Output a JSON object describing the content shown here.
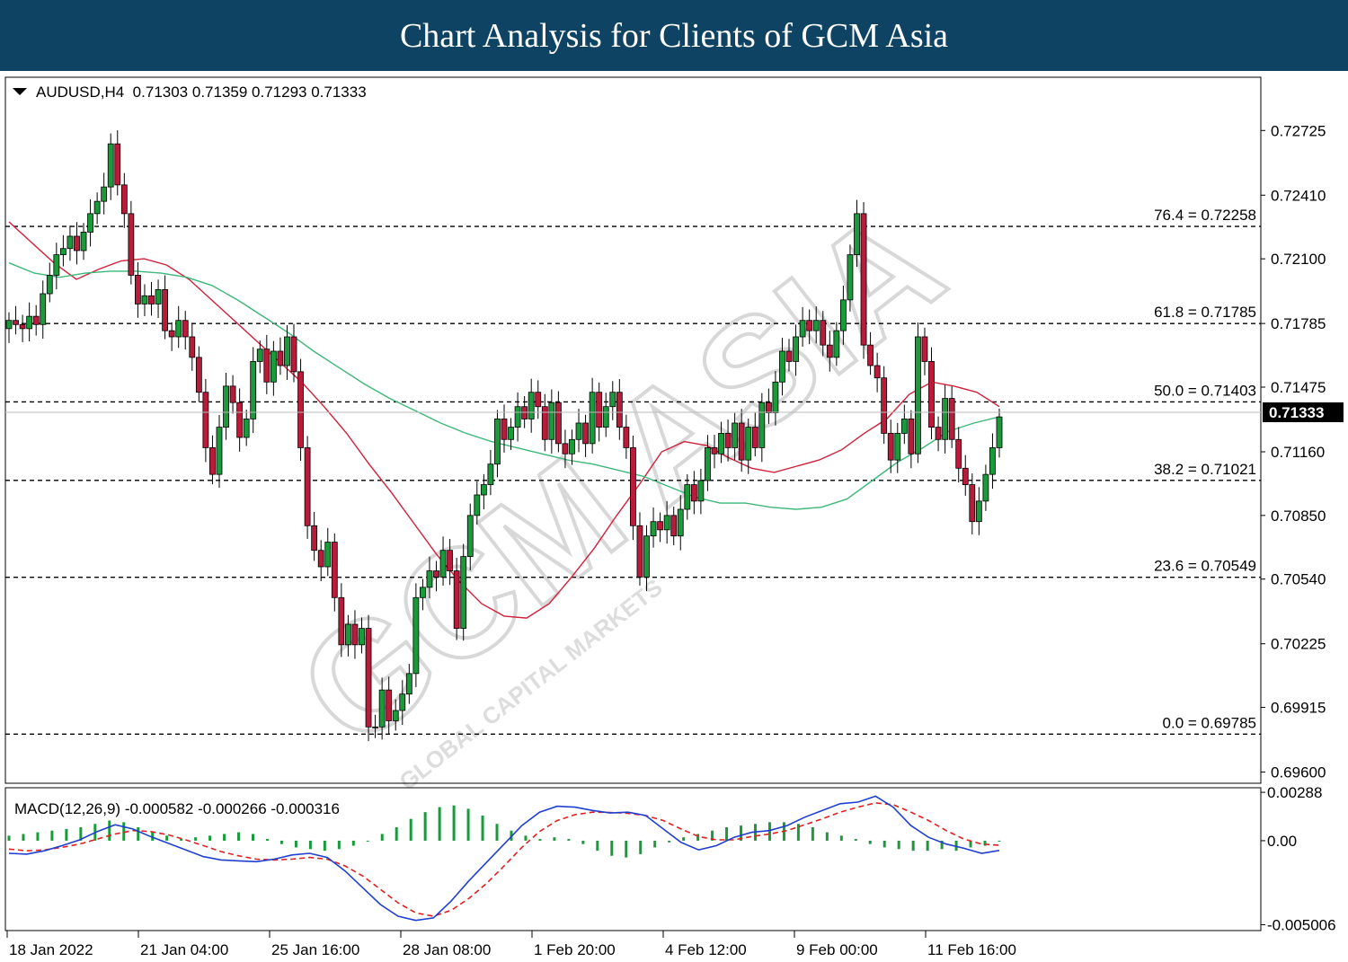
{
  "banner": {
    "title": "Chart Analysis for Clients of GCM Asia"
  },
  "watermark": {
    "brand": "GCM ASIA",
    "tagline": "GLOBAL CAPITAL MARKETS"
  },
  "colors": {
    "bull": "#1a9a3a",
    "bear": "#b81c3a",
    "ma_fast": "#d0203a",
    "ma_slow": "#3cb878",
    "macd_line": "#1f3fd0",
    "signal_line": "#e02020",
    "histogram": "#1a9a3a"
  },
  "chart_data": [
    {
      "type": "candlestick",
      "header": "AUDUSD,H4  0.71303 0.71359 0.71293 0.71333",
      "symbol": "AUDUSD",
      "timeframe": "H4",
      "ohlc": {
        "open": 0.71303,
        "high": 0.71359,
        "low": 0.71293,
        "close": 0.71333
      },
      "ylim": [
        0.6955,
        0.7298
      ],
      "y_ticks": [
        "0.72725",
        "0.72410",
        "0.72100",
        "0.71785",
        "0.71475",
        "0.71160",
        "0.70850",
        "0.70540",
        "0.70225",
        "0.69915",
        "0.69600"
      ],
      "current_price_label": "0.71333",
      "x_ticks": [
        "18 Jan 2022",
        "21 Jan 04:00",
        "25 Jan 16:00",
        "28 Jan 08:00",
        "1 Feb 20:00",
        "4 Feb 12:00",
        "9 Feb 00:00",
        "11 Feb 16:00"
      ],
      "fibonacci": [
        {
          "label": "76.4 = 0.72258",
          "value": 0.72258
        },
        {
          "label": "61.8 = 0.71785",
          "value": 0.71785
        },
        {
          "label": "50.0 = 0.71403",
          "value": 0.71403
        },
        {
          "label": "38.2 = 0.71021",
          "value": 0.71021
        },
        {
          "label": "23.6 = 0.70549",
          "value": 0.70549
        },
        {
          "label": "0.0 = 0.69785",
          "value": 0.69785
        }
      ],
      "closes": [
        0.718,
        0.7178,
        0.7176,
        0.7182,
        0.7178,
        0.7193,
        0.7202,
        0.7212,
        0.7215,
        0.7221,
        0.7214,
        0.7223,
        0.7232,
        0.7238,
        0.7245,
        0.7266,
        0.7246,
        0.7232,
        0.7202,
        0.7188,
        0.7192,
        0.7188,
        0.7195,
        0.7175,
        0.7172,
        0.718,
        0.7172,
        0.7162,
        0.7145,
        0.7118,
        0.7105,
        0.7128,
        0.7148,
        0.714,
        0.7123,
        0.7132,
        0.716,
        0.7166,
        0.715,
        0.7165,
        0.7158,
        0.7172,
        0.7155,
        0.7118,
        0.708,
        0.7068,
        0.706,
        0.7072,
        0.7045,
        0.7022,
        0.7032,
        0.7022,
        0.703,
        0.6982,
        0.6982,
        0.7,
        0.6985,
        0.699,
        0.6998,
        0.7008,
        0.7045,
        0.705,
        0.7058,
        0.7055,
        0.7068,
        0.7058,
        0.703,
        0.7065,
        0.7085,
        0.7095,
        0.71,
        0.711,
        0.7132,
        0.7122,
        0.7128,
        0.7138,
        0.7132,
        0.7145,
        0.7138,
        0.7122,
        0.714,
        0.712,
        0.7115,
        0.7122,
        0.713,
        0.712,
        0.7145,
        0.7128,
        0.7138,
        0.7145,
        0.7128,
        0.7118,
        0.708,
        0.7055,
        0.7075,
        0.7082,
        0.7078,
        0.7085,
        0.7075,
        0.7088,
        0.71,
        0.7092,
        0.7102,
        0.7118,
        0.7115,
        0.7125,
        0.7118,
        0.713,
        0.7112,
        0.7128,
        0.7118,
        0.714,
        0.7135,
        0.715,
        0.7165,
        0.716,
        0.7172,
        0.718,
        0.7175,
        0.718,
        0.7168,
        0.7162,
        0.7175,
        0.719,
        0.7212,
        0.7232,
        0.7168,
        0.7158,
        0.7152,
        0.7125,
        0.7112,
        0.7125,
        0.7132,
        0.7115,
        0.7172,
        0.716,
        0.7128,
        0.7122,
        0.7142,
        0.7122,
        0.7108,
        0.71,
        0.7082,
        0.7092,
        0.7105,
        0.7118,
        0.7133
      ],
      "moving_averages": [
        {
          "name": "MA fast",
          "values": [
            0.7228,
            0.7218,
            0.7208,
            0.72,
            0.7205,
            0.7209,
            0.721,
            0.7207,
            0.72,
            0.719,
            0.718,
            0.717,
            0.716,
            0.715,
            0.7138,
            0.7125,
            0.711,
            0.7096,
            0.7081,
            0.7066,
            0.7053,
            0.7042,
            0.7036,
            0.7035,
            0.7042,
            0.7055,
            0.7069,
            0.7085,
            0.71,
            0.7116,
            0.7121,
            0.7119,
            0.7113,
            0.7108,
            0.7106,
            0.7109,
            0.7112,
            0.7117,
            0.7125,
            0.7132,
            0.7144,
            0.715,
            0.7148,
            0.7145,
            0.7138
          ]
        },
        {
          "name": "MA slow",
          "values": [
            0.7208,
            0.7203,
            0.7201,
            0.7203,
            0.7204,
            0.7204,
            0.7203,
            0.7201,
            0.7197,
            0.719,
            0.7182,
            0.7174,
            0.7165,
            0.7157,
            0.7149,
            0.7142,
            0.7136,
            0.713,
            0.7125,
            0.7121,
            0.7118,
            0.7115,
            0.7112,
            0.711,
            0.7107,
            0.7104,
            0.7099,
            0.7094,
            0.7091,
            0.7091,
            0.7089,
            0.7088,
            0.7089,
            0.7093,
            0.7102,
            0.7111,
            0.7118,
            0.7126,
            0.713,
            0.7133
          ]
        }
      ]
    },
    {
      "type": "macd",
      "header": "MACD(12,26,9) -0.000582 -0.000266 -0.000316",
      "params": "12,26,9",
      "values": {
        "macd": -0.000582,
        "signal": -0.000266,
        "histogram": -0.000316
      },
      "ylim": [
        -0.0053,
        0.0031
      ],
      "y_ticks": [
        "0.00288",
        "0.00",
        "-0.005006"
      ],
      "macd_line": [
        -0.00075,
        -0.0008,
        -0.0006,
        -0.0003,
        5e-05,
        0.00055,
        0.00095,
        0.0007,
        0.00025,
        -0.00015,
        -0.00055,
        -0.00095,
        -0.00115,
        -0.0012,
        -0.00125,
        -0.0011,
        -0.00085,
        -0.00075,
        -0.001,
        -0.0018,
        -0.0028,
        -0.0038,
        -0.0045,
        -0.00475,
        -0.0046,
        -0.0036,
        -0.0024,
        -0.0013,
        -0.0002,
        0.0009,
        0.0017,
        0.00205,
        0.002,
        0.0018,
        0.00165,
        0.0017,
        0.0015,
        0.0007,
        -0.0001,
        -0.00055,
        -0.0003,
        0.0002,
        0.0005,
        0.0006,
        0.0009,
        0.0014,
        0.0018,
        0.0022,
        0.0023,
        0.00265,
        0.002,
        0.0009,
        0.0002,
        -0.0002,
        -0.00045,
        -0.00075,
        -0.00058
      ],
      "signal_line": [
        -0.0005,
        -0.0006,
        -0.00055,
        -0.0004,
        -0.0002,
        0.0001,
        0.0004,
        0.0006,
        0.00055,
        0.00035,
        5e-05,
        -0.0003,
        -0.00065,
        -0.0009,
        -0.0011,
        -0.00115,
        -0.0011,
        -0.001,
        -0.0011,
        -0.0015,
        -0.0021,
        -0.0029,
        -0.0037,
        -0.0043,
        -0.0045,
        -0.00415,
        -0.00345,
        -0.00255,
        -0.0015,
        -0.0004,
        0.00055,
        0.0012,
        0.00155,
        0.0017,
        0.00168,
        0.00163,
        0.0015,
        0.0012,
        0.0007,
        0.00025,
        5e-05,
        5e-05,
        0.00025,
        0.0004,
        0.0006,
        0.00095,
        0.0013,
        0.0017,
        0.002,
        0.00225,
        0.00215,
        0.0017,
        0.0012,
        0.0006,
        0.0001,
        -0.0002,
        -0.00027
      ],
      "histogram_bars": [
        0.0003,
        0.0004,
        0.0005,
        0.0006,
        0.0007,
        0.0008,
        0.001,
        0.0012,
        0.0011,
        0.0008,
        0.0005,
        0.0003,
        0.0001,
        0.0002,
        0.0003,
        0.0004,
        0.0005,
        0.0004,
        0.0001,
        -0.0002,
        -0.0004,
        -0.0005,
        -0.0006,
        -0.0005,
        -0.0003,
        0.0,
        0.0004,
        0.0008,
        0.0013,
        0.0017,
        0.002,
        0.0021,
        0.0019,
        0.0015,
        0.001,
        0.0006,
        0.0003,
        0.0001,
        0.0002,
        0.0001,
        -0.0002,
        -0.0006,
        -0.0009,
        -0.001,
        -0.0008,
        -0.0004,
        -0.0001,
        0.0002,
        0.0004,
        0.0006,
        0.0008,
        0.0009,
        0.001,
        0.0011,
        0.0011,
        0.001,
        0.0008,
        0.0005,
        0.0003,
        0.0001,
        -0.0002,
        -0.0004,
        -0.0005,
        -0.0006,
        -0.0006,
        -0.0005,
        -0.0006,
        -0.0004,
        -0.0003,
        0.0
      ]
    }
  ]
}
